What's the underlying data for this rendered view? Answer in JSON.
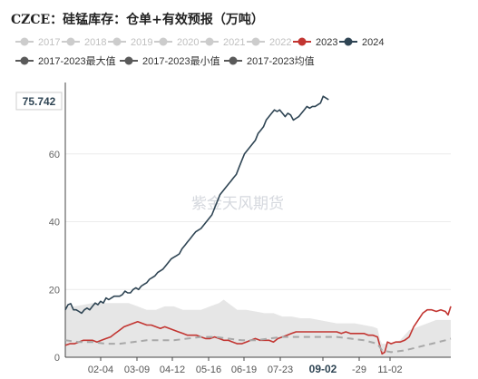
{
  "title": "CZCE：硅锰库存：仓单+有效预报（万吨）",
  "watermark": "紫金天风期货",
  "chart_data": {
    "type": "line",
    "ylim": [
      0,
      80
    ],
    "yticks": [
      0,
      20,
      40,
      60
    ],
    "hover_value": "75.742",
    "xtick_labels": [
      "02-04",
      "03-09",
      "04-12",
      "05-16",
      "06-19",
      "07-23",
      "09-02",
      "-29",
      "11-02"
    ],
    "xtick_highlight": "09-02",
    "legend": [
      {
        "name": "2017",
        "color": "#cccccc",
        "shape": "circle-line"
      },
      {
        "name": "2018",
        "color": "#cccccc",
        "shape": "circle-line"
      },
      {
        "name": "2019",
        "color": "#cccccc",
        "shape": "circle-line"
      },
      {
        "name": "2020",
        "color": "#cccccc",
        "shape": "circle-line"
      },
      {
        "name": "2021",
        "color": "#cccccc",
        "shape": "circle-line"
      },
      {
        "name": "2022",
        "color": "#cccccc",
        "shape": "circle-line"
      },
      {
        "name": "2023",
        "color": "#c23531",
        "shape": "circle-line"
      },
      {
        "name": "2024",
        "color": "#2f4554",
        "shape": "circle-line"
      },
      {
        "name": "2017-2023最大值",
        "color": "#5a5a5a",
        "shape": "circle-line"
      },
      {
        "name": "2017-2023最小值",
        "color": "#5a5a5a",
        "shape": "circle-line"
      },
      {
        "name": "2017-2023均值",
        "color": "#5a5a5a",
        "shape": "circle-line"
      }
    ],
    "series": [
      {
        "name": "2024",
        "color": "#2f4554",
        "points": [
          [
            0,
            14
          ],
          [
            3,
            15.5
          ],
          [
            6,
            15.8
          ],
          [
            9,
            14
          ],
          [
            12,
            14
          ],
          [
            15,
            13.5
          ],
          [
            18,
            13
          ],
          [
            21,
            14
          ],
          [
            24,
            14.5
          ],
          [
            27,
            14
          ],
          [
            30,
            15
          ],
          [
            33,
            16
          ],
          [
            36,
            15.5
          ],
          [
            39,
            16.5
          ],
          [
            42,
            16
          ],
          [
            45,
            17.5
          ],
          [
            48,
            17
          ],
          [
            51,
            17.5
          ],
          [
            54,
            18
          ],
          [
            57,
            18
          ],
          [
            60,
            18
          ],
          [
            63,
            18.5
          ],
          [
            66,
            19.5
          ],
          [
            69,
            19
          ],
          [
            72,
            19
          ],
          [
            75,
            20
          ],
          [
            78,
            20.5
          ],
          [
            81,
            20
          ],
          [
            84,
            21
          ],
          [
            87,
            21.5
          ],
          [
            90,
            22
          ],
          [
            93,
            23
          ],
          [
            96,
            23.5
          ],
          [
            99,
            24
          ],
          [
            102,
            25
          ],
          [
            105,
            25.5
          ],
          [
            108,
            26
          ],
          [
            111,
            27
          ],
          [
            114,
            28
          ],
          [
            117,
            29
          ],
          [
            120,
            29.5
          ],
          [
            123,
            30
          ],
          [
            126,
            30.5
          ],
          [
            129,
            32
          ],
          [
            132,
            33
          ],
          [
            135,
            34
          ],
          [
            138,
            35
          ],
          [
            141,
            36
          ],
          [
            144,
            37
          ],
          [
            147,
            37.5
          ],
          [
            150,
            38
          ],
          [
            153,
            39
          ],
          [
            156,
            40
          ],
          [
            159,
            41
          ],
          [
            162,
            42
          ],
          [
            165,
            44
          ],
          [
            168,
            46
          ],
          [
            171,
            48
          ],
          [
            174,
            49
          ],
          [
            177,
            50
          ],
          [
            180,
            51
          ],
          [
            183,
            52
          ],
          [
            186,
            53
          ],
          [
            189,
            54
          ],
          [
            192,
            56
          ],
          [
            195,
            58
          ],
          [
            198,
            60
          ],
          [
            201,
            61
          ],
          [
            204,
            62
          ],
          [
            207,
            63
          ],
          [
            210,
            64
          ],
          [
            213,
            66
          ],
          [
            216,
            67
          ],
          [
            219,
            68
          ],
          [
            222,
            70
          ],
          [
            225,
            71
          ],
          [
            228,
            72
          ],
          [
            231,
            73
          ],
          [
            234,
            72.5
          ],
          [
            237,
            73
          ],
          [
            240,
            72
          ],
          [
            243,
            71
          ],
          [
            246,
            72
          ],
          [
            249,
            71.5
          ],
          [
            252,
            70
          ],
          [
            255,
            70.5
          ],
          [
            258,
            71
          ],
          [
            261,
            72
          ],
          [
            264,
            73
          ],
          [
            267,
            74
          ],
          [
            270,
            73.5
          ],
          [
            273,
            74
          ],
          [
            276,
            74
          ],
          [
            279,
            74.5
          ],
          [
            282,
            75
          ],
          [
            285,
            77
          ],
          [
            288,
            76.5
          ],
          [
            291,
            76
          ]
        ]
      },
      {
        "name": "2023",
        "color": "#c23531",
        "points": [
          [
            0,
            3.5
          ],
          [
            5,
            4
          ],
          [
            10,
            4
          ],
          [
            15,
            4.5
          ],
          [
            20,
            5
          ],
          [
            25,
            5
          ],
          [
            30,
            5
          ],
          [
            35,
            4.5
          ],
          [
            40,
            5
          ],
          [
            45,
            5.5
          ],
          [
            50,
            6
          ],
          [
            55,
            7
          ],
          [
            60,
            8
          ],
          [
            65,
            9
          ],
          [
            70,
            9.5
          ],
          [
            75,
            10
          ],
          [
            80,
            10.5
          ],
          [
            85,
            10
          ],
          [
            90,
            9.5
          ],
          [
            95,
            9.5
          ],
          [
            100,
            9
          ],
          [
            105,
            8.5
          ],
          [
            110,
            9
          ],
          [
            115,
            8.5
          ],
          [
            120,
            8
          ],
          [
            125,
            7.5
          ],
          [
            130,
            7
          ],
          [
            135,
            6.5
          ],
          [
            140,
            6.5
          ],
          [
            145,
            6.5
          ],
          [
            150,
            6
          ],
          [
            155,
            5.5
          ],
          [
            160,
            5.5
          ],
          [
            165,
            6
          ],
          [
            170,
            5.5
          ],
          [
            175,
            5
          ],
          [
            180,
            5
          ],
          [
            185,
            4.5
          ],
          [
            190,
            4
          ],
          [
            195,
            4
          ],
          [
            200,
            4.5
          ],
          [
            205,
            5
          ],
          [
            210,
            5.5
          ],
          [
            215,
            5
          ],
          [
            220,
            5
          ],
          [
            225,
            5
          ],
          [
            230,
            4.5
          ],
          [
            235,
            5.5
          ],
          [
            240,
            6
          ],
          [
            245,
            6.5
          ],
          [
            250,
            7
          ],
          [
            255,
            7.5
          ],
          [
            260,
            7.5
          ],
          [
            265,
            7.5
          ],
          [
            270,
            7.5
          ],
          [
            275,
            7.5
          ],
          [
            280,
            7.5
          ],
          [
            285,
            7.5
          ],
          [
            290,
            7.5
          ],
          [
            295,
            7.5
          ],
          [
            300,
            7.5
          ],
          [
            305,
            7
          ],
          [
            310,
            7.5
          ],
          [
            315,
            7
          ],
          [
            320,
            7
          ],
          [
            325,
            7
          ],
          [
            330,
            7
          ],
          [
            335,
            6.5
          ],
          [
            340,
            6.5
          ],
          [
            345,
            6
          ],
          [
            348,
            3
          ],
          [
            350,
            1
          ],
          [
            353,
            1.5
          ],
          [
            356,
            4.5
          ],
          [
            360,
            4
          ],
          [
            365,
            4.5
          ],
          [
            370,
            4.5
          ],
          [
            375,
            5
          ],
          [
            380,
            6
          ],
          [
            385,
            9
          ],
          [
            390,
            11
          ],
          [
            395,
            13
          ],
          [
            400,
            14
          ],
          [
            405,
            14
          ],
          [
            410,
            13.5
          ],
          [
            415,
            14
          ],
          [
            420,
            13.5
          ],
          [
            423,
            12.5
          ],
          [
            426,
            15
          ]
        ]
      },
      {
        "name": "2017-2023均值",
        "color": "#a8a8a8",
        "dashed": true,
        "points": [
          [
            0,
            5
          ],
          [
            15,
            4.5
          ],
          [
            30,
            4.5
          ],
          [
            45,
            4
          ],
          [
            60,
            4
          ],
          [
            75,
            4.5
          ],
          [
            90,
            5
          ],
          [
            105,
            5
          ],
          [
            120,
            5
          ],
          [
            135,
            5.5
          ],
          [
            150,
            6
          ],
          [
            165,
            6
          ],
          [
            180,
            5.5
          ],
          [
            195,
            5
          ],
          [
            210,
            5
          ],
          [
            225,
            5.5
          ],
          [
            240,
            6
          ],
          [
            255,
            6
          ],
          [
            270,
            6
          ],
          [
            285,
            6
          ],
          [
            300,
            6
          ],
          [
            315,
            5.5
          ],
          [
            330,
            5
          ],
          [
            345,
            4
          ],
          [
            350,
            2
          ],
          [
            360,
            1.5
          ],
          [
            375,
            2
          ],
          [
            390,
            3
          ],
          [
            405,
            4
          ],
          [
            420,
            5
          ],
          [
            426,
            5.5
          ]
        ]
      }
    ],
    "band_max": [
      [
        0,
        15
      ],
      [
        10,
        15
      ],
      [
        20,
        15.5
      ],
      [
        30,
        16
      ],
      [
        40,
        16
      ],
      [
        50,
        16
      ],
      [
        60,
        16
      ],
      [
        70,
        16
      ],
      [
        80,
        15
      ],
      [
        90,
        14
      ],
      [
        100,
        14
      ],
      [
        110,
        15
      ],
      [
        120,
        15
      ],
      [
        130,
        14
      ],
      [
        140,
        14
      ],
      [
        150,
        14
      ],
      [
        160,
        15
      ],
      [
        170,
        16
      ],
      [
        175,
        17
      ],
      [
        180,
        16
      ],
      [
        190,
        14
      ],
      [
        200,
        14
      ],
      [
        210,
        13.5
      ],
      [
        220,
        13
      ],
      [
        230,
        13
      ],
      [
        240,
        12
      ],
      [
        250,
        12
      ],
      [
        260,
        11.5
      ],
      [
        270,
        11.5
      ],
      [
        280,
        11
      ],
      [
        290,
        10.5
      ],
      [
        300,
        10
      ],
      [
        310,
        10
      ],
      [
        320,
        10
      ],
      [
        330,
        9.5
      ],
      [
        340,
        9
      ],
      [
        345,
        8.5
      ],
      [
        348,
        5
      ],
      [
        350,
        4
      ],
      [
        360,
        4
      ],
      [
        370,
        5
      ],
      [
        380,
        8
      ],
      [
        390,
        9
      ],
      [
        400,
        10
      ],
      [
        410,
        11
      ],
      [
        426,
        11
      ]
    ],
    "band_min": [
      [
        0,
        0
      ],
      [
        426,
        0
      ]
    ]
  }
}
